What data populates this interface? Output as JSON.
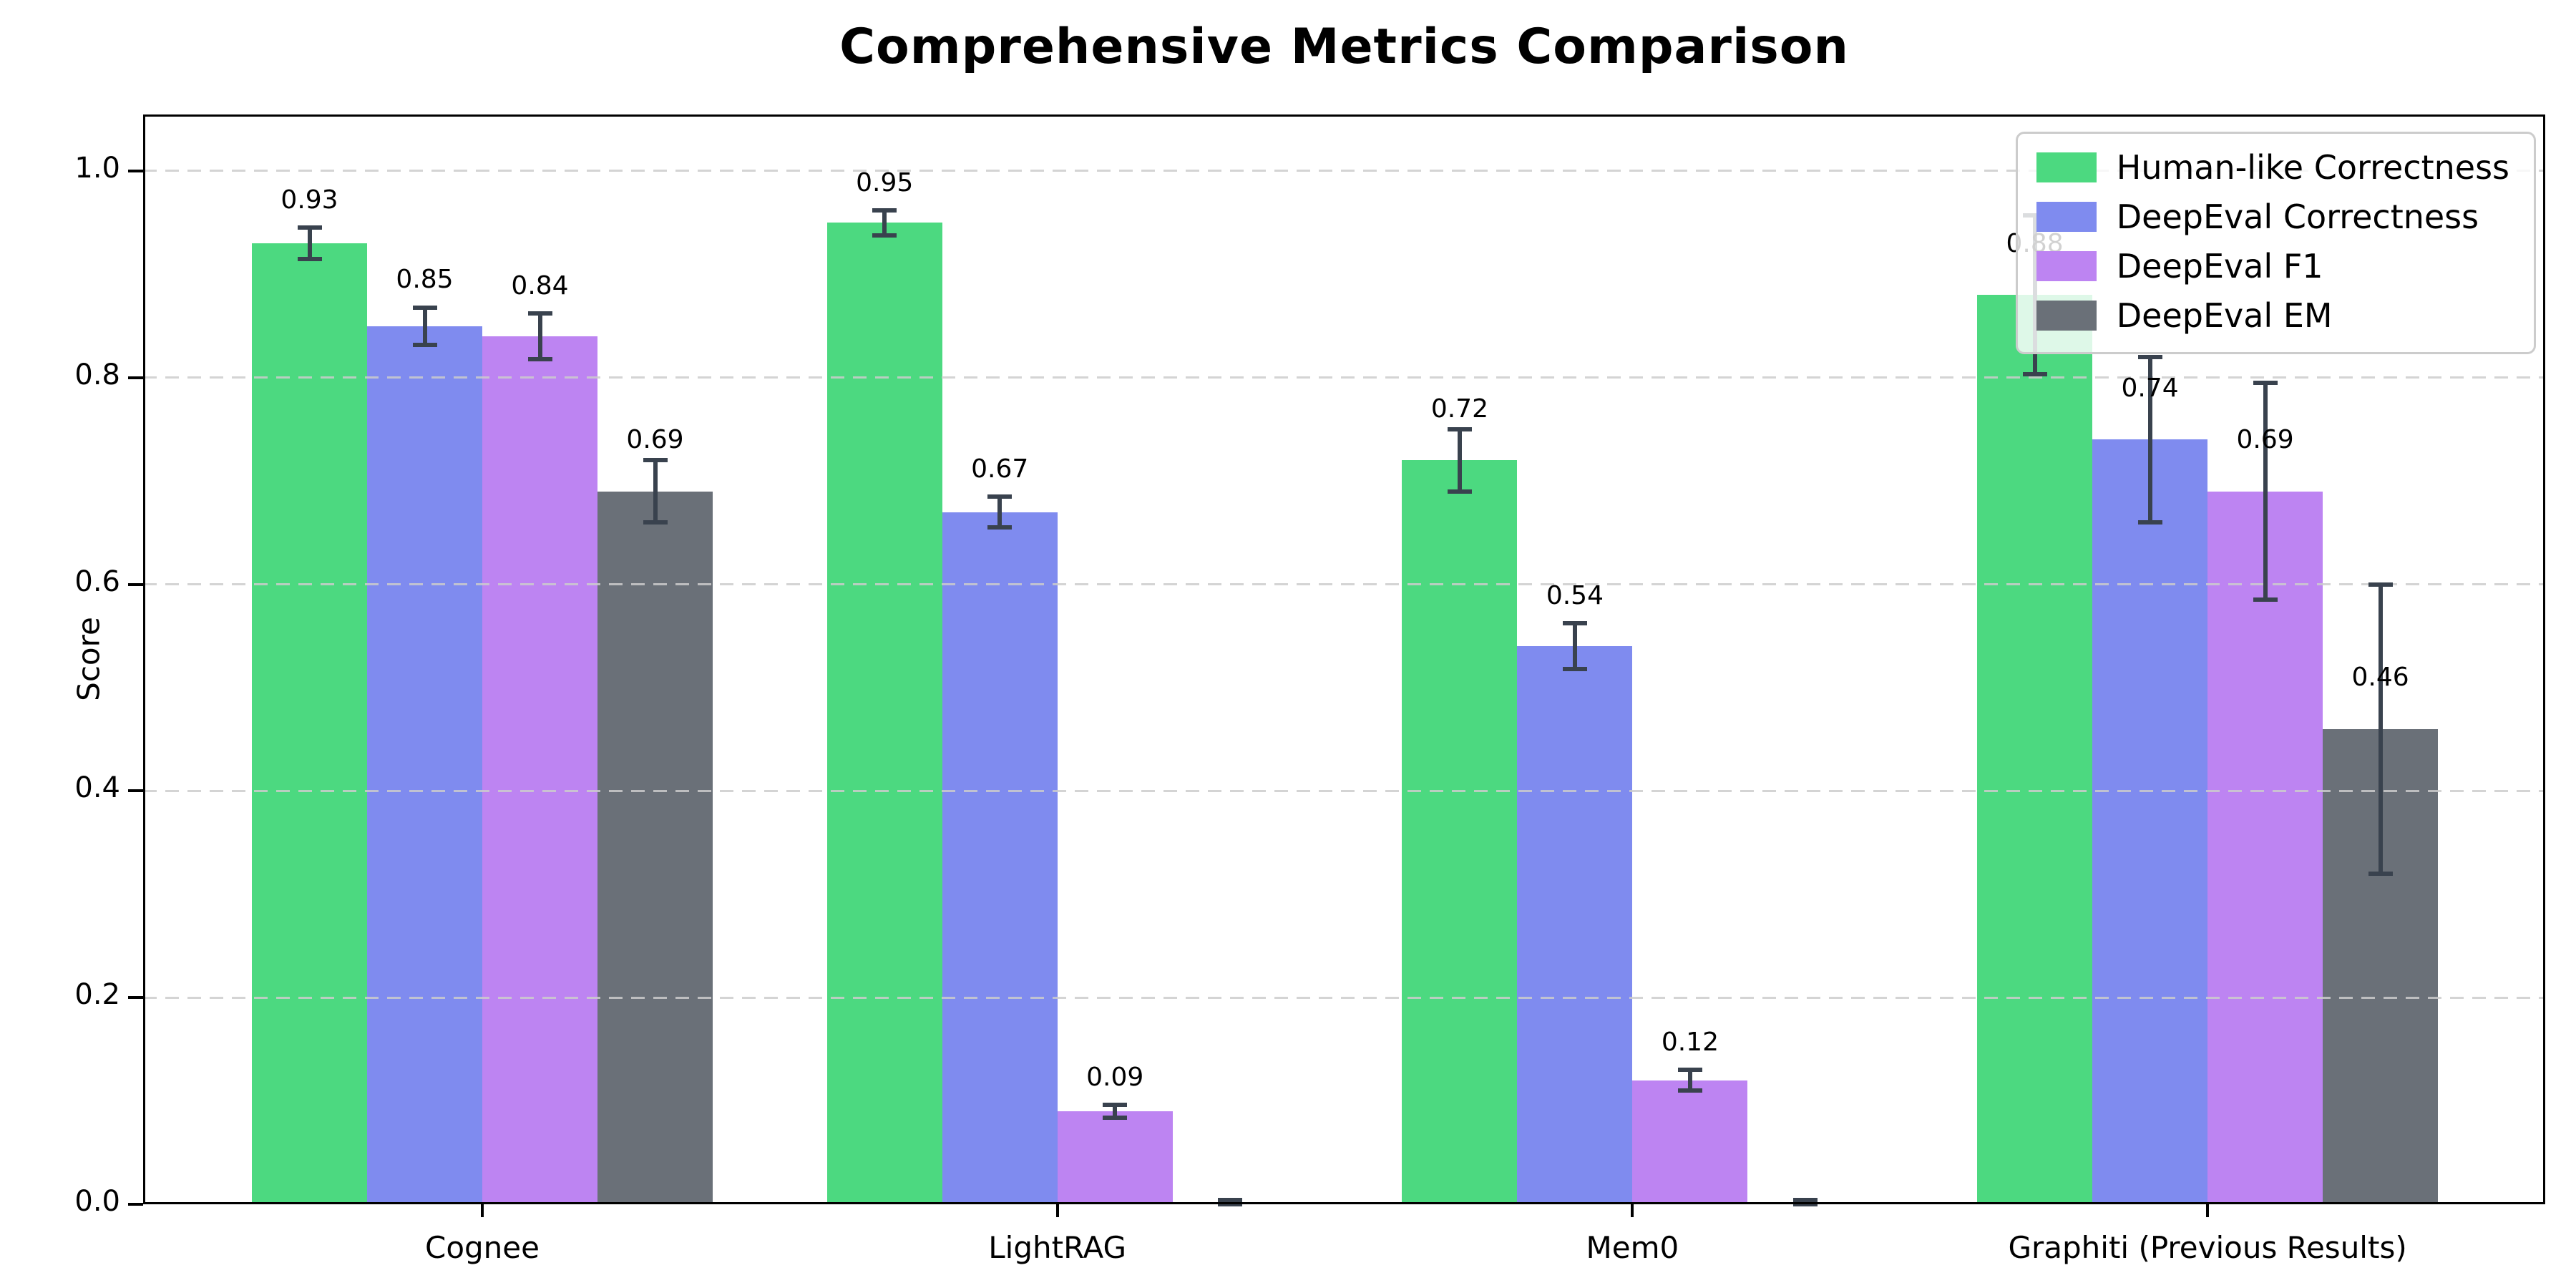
{
  "chart_data": {
    "type": "bar",
    "title": "Comprehensive Metrics Comparison",
    "ylabel": "Score",
    "xlabel": "",
    "categories": [
      "Cognee",
      "LightRAG",
      "Mem0",
      "Graphiti (Previous Results)"
    ],
    "series": [
      {
        "name": "Human-like Correctness",
        "color": "#4cd980",
        "values": [
          0.93,
          0.95,
          0.72,
          0.88
        ],
        "errors": [
          0.015,
          0.012,
          0.03,
          0.077
        ],
        "labels": [
          "0.93",
          "0.95",
          "0.72",
          "0.88"
        ]
      },
      {
        "name": "DeepEval Correctness",
        "color": "#7f8bef",
        "values": [
          0.85,
          0.67,
          0.54,
          0.74
        ],
        "errors": [
          0.018,
          0.015,
          0.022,
          0.08
        ],
        "labels": [
          "0.85",
          "0.67",
          "0.54",
          "0.74"
        ]
      },
      {
        "name": "DeepEval F1",
        "color": "#bd84f2",
        "values": [
          0.84,
          0.09,
          0.12,
          0.69
        ],
        "errors": [
          0.022,
          0.006,
          0.01,
          0.105
        ],
        "labels": [
          "0.84",
          "0.09",
          "0.12",
          "0.69"
        ]
      },
      {
        "name": "DeepEval EM",
        "color": "#6a7078",
        "values": [
          0.69,
          0.0,
          0.0,
          0.46
        ],
        "errors": [
          0.03,
          0.004,
          0.004,
          0.14
        ],
        "labels": [
          "0.69",
          "",
          "",
          "0.46"
        ]
      }
    ],
    "yticks": [
      "0.0",
      "0.2",
      "0.4",
      "0.6",
      "0.8",
      "1.0"
    ],
    "ylim": [
      0.0,
      1.055
    ],
    "grid": "horizontal-dashed",
    "legend_position": "upper-right",
    "errorbar_color": "#39424e",
    "gridline_color": "#cccccc",
    "axis_color": "#000000",
    "background_color": "#ffffff"
  }
}
